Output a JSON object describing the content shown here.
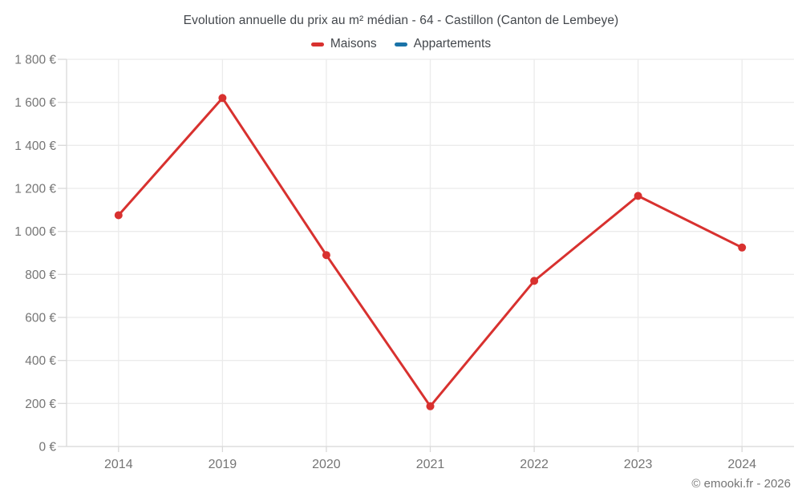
{
  "chart_data": {
    "type": "line",
    "title": "Evolution annuelle du prix au m² médian - 64 - Castillon (Canton de Lembeye)",
    "categories": [
      "2014",
      "2019",
      "2020",
      "2021",
      "2022",
      "2023",
      "2024"
    ],
    "series": [
      {
        "name": "Maisons",
        "color": "#d8312f",
        "values": [
          1075,
          1620,
          890,
          187,
          770,
          1165,
          925
        ]
      },
      {
        "name": "Appartements",
        "color": "#1a73a8",
        "values": []
      }
    ],
    "xlabel": "",
    "ylabel": "",
    "ylim": [
      0,
      1800
    ],
    "ytick_step": 200,
    "yticks": [
      {
        "value": 0,
        "label": "0 €"
      },
      {
        "value": 200,
        "label": "200 €"
      },
      {
        "value": 400,
        "label": "400 €"
      },
      {
        "value": 600,
        "label": "600 €"
      },
      {
        "value": 800,
        "label": "800 €"
      },
      {
        "value": 1000,
        "label": "1 000 €"
      },
      {
        "value": 1200,
        "label": "1 200 €"
      },
      {
        "value": 1400,
        "label": "1 400 €"
      },
      {
        "value": 1600,
        "label": "1 600 €"
      },
      {
        "value": 1800,
        "label": "1 800 €"
      }
    ],
    "grid": true,
    "legend_position": "top"
  },
  "colors": {
    "maisons": "#d8312f",
    "appartements": "#1a73a8",
    "gridline": "#ebebeb",
    "axis": "#d9d9d9",
    "tick_label": "#757575",
    "title_text": "#43474c"
  },
  "footer": {
    "credit": "© emooki.fr - 2026"
  }
}
